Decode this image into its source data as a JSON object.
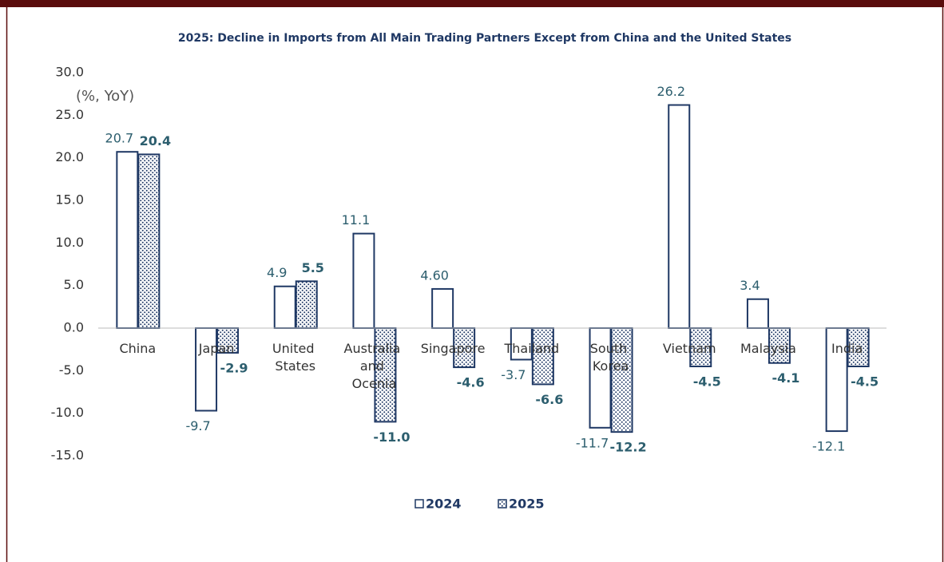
{
  "chart_data": {
    "type": "bar",
    "title": "2025: Decline in Imports from All  Main Trading Partners Except from China and the United States",
    "y_label": "(%, YoY)",
    "categories": [
      "China",
      "Japan",
      "United States",
      "Australia and Ocenia",
      "Singapore",
      "Thailand",
      "South Korea",
      "Vietnam",
      "Malaysia",
      "India"
    ],
    "series": [
      {
        "name": "2024",
        "color": "#1f3864",
        "fill": "none",
        "values": [
          20.7,
          -9.7,
          4.9,
          11.1,
          4.6,
          -3.7,
          -11.7,
          26.2,
          3.4,
          -12.1
        ],
        "value_labels": [
          "20.7",
          "-9.7",
          "4.9",
          "11.1",
          "4.60",
          "-3.7",
          "-11.7",
          "26.2",
          "3.4",
          "-12.1"
        ]
      },
      {
        "name": "2025",
        "color": "#1f3864",
        "fill": "dotted",
        "values": [
          20.4,
          -2.9,
          5.5,
          -11.0,
          -4.6,
          -6.6,
          -12.2,
          -4.5,
          -4.1,
          -4.5
        ],
        "value_labels": [
          "20.4",
          "-2.9",
          "5.5",
          "-11.0",
          "-4.6",
          "-6.6",
          "-12.2",
          "-4.5",
          "-4.1",
          "-4.5"
        ]
      }
    ],
    "ylim": [
      -15,
      30
    ],
    "yticks": [
      {
        "value": -15,
        "label": "-15.0"
      },
      {
        "value": -10,
        "label": "-10.0"
      },
      {
        "value": -5,
        "label": "-5.0"
      },
      {
        "value": 0,
        "label": "0.0"
      },
      {
        "value": 5,
        "label": "5.0"
      },
      {
        "value": 10,
        "label": "10.0"
      },
      {
        "value": 15,
        "label": "15.0"
      },
      {
        "value": 20,
        "label": "20.0"
      },
      {
        "value": 25,
        "label": "25.0"
      },
      {
        "value": 30,
        "label": "30.0"
      }
    ],
    "grid": false,
    "legend": "bottom"
  }
}
